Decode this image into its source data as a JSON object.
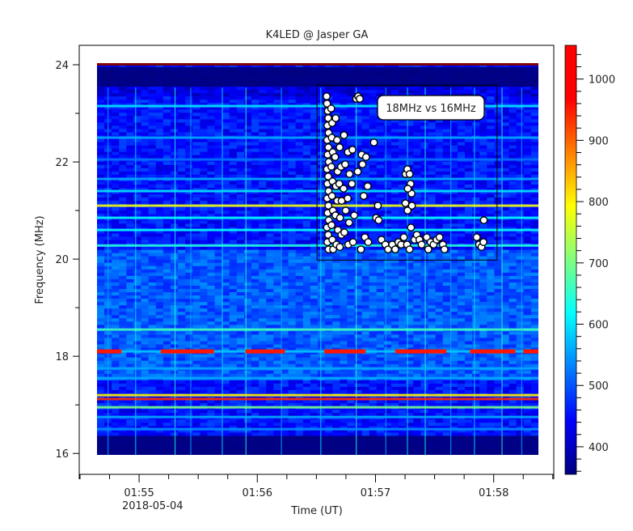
{
  "chart_data": {
    "type": "heatmap",
    "title": "K4LED @ Jasper GA",
    "xlabel": "Time (UT)",
    "ylabel": "Frequency (MHz)",
    "x_axis": {
      "unit": "seconds after 01:54:00 UT",
      "range_sec": [
        29.6,
        270.5
      ],
      "data_extent_sec": [
        38.6,
        262.7
      ],
      "major_ticks_sec": [
        60,
        120,
        180,
        240
      ],
      "major_tick_labels": [
        "01:55",
        "01:56",
        "01:57",
        "01:58"
      ],
      "minor_tick_step_sec": 15,
      "date_label": "2018-05-04"
    },
    "y_axis": {
      "range": [
        15.57,
        24.4
      ],
      "data_extent": [
        15.97,
        24.03
      ],
      "major_ticks": [
        16,
        18,
        20,
        22,
        24
      ],
      "major_tick_labels": [
        "16",
        "18",
        "20",
        "22",
        "24"
      ],
      "minor_ticks": [
        17,
        19,
        21,
        23
      ]
    },
    "colorbar": {
      "colormap": "jet",
      "range": [
        355,
        1055
      ],
      "ticks": [
        400,
        500,
        600,
        700,
        800,
        900,
        1000
      ],
      "tick_labels": [
        "400",
        "500",
        "600",
        "700",
        "800",
        "900",
        "1000"
      ],
      "minor_tick_step": 20,
      "colors": [
        "#00007f",
        "#0000ff",
        "#007fff",
        "#00ffff",
        "#7fff7f",
        "#ffff00",
        "#ff7f00",
        "#ff0000"
      ]
    },
    "heatmap_features": {
      "background_level": 450,
      "noise_floor_band": {
        "freq_range": [
          15.97,
          16.35
        ],
        "level": 355
      },
      "top_black_band": {
        "freq_range": [
          23.55,
          23.95
        ],
        "level": 355
      },
      "top_red_line": {
        "freq": 24.01,
        "level": 1055
      },
      "horizontal_bands": [
        {
          "freq": 23.15,
          "level": 600
        },
        {
          "freq": 22.5,
          "level": 560
        },
        {
          "freq": 22.05,
          "level": 520
        },
        {
          "freq": 21.65,
          "level": 560
        },
        {
          "freq": 21.4,
          "level": 600
        },
        {
          "freq": 21.1,
          "level": 780
        },
        {
          "freq": 20.85,
          "level": 620
        },
        {
          "freq": 20.6,
          "level": 620
        },
        {
          "freq": 20.28,
          "level": 640
        },
        {
          "freq": 18.55,
          "level": 660
        },
        {
          "freq": 18.1,
          "level": 580
        },
        {
          "freq": 17.75,
          "level": 560
        },
        {
          "freq": 17.55,
          "level": 560
        },
        {
          "freq": 17.2,
          "level": 800
        },
        {
          "freq": 17.12,
          "level": 940
        },
        {
          "freq": 16.95,
          "level": 700
        },
        {
          "freq": 16.75,
          "level": 560
        },
        {
          "freq": 16.5,
          "level": 540
        }
      ],
      "red_segments": [
        {
          "freq": 18.1,
          "t_range_sec": [
            38.6,
            51
          ]
        },
        {
          "freq": 18.1,
          "t_range_sec": [
            71,
            98
          ]
        },
        {
          "freq": 18.1,
          "t_range_sec": [
            114,
            134
          ]
        },
        {
          "freq": 18.1,
          "t_range_sec": [
            154,
            175
          ]
        },
        {
          "freq": 18.1,
          "t_range_sec": [
            190,
            216
          ]
        },
        {
          "freq": 18.1,
          "t_range_sec": [
            228,
            251
          ]
        },
        {
          "freq": 18.1,
          "t_range_sec": [
            255,
            262.7
          ]
        }
      ],
      "vertical_streaks_sec": [
        44,
        58,
        78,
        86,
        102,
        114,
        132,
        152,
        170,
        185,
        196,
        205,
        218,
        230,
        244,
        254
      ]
    },
    "annotation_box": {
      "label": "18MHz vs 16MHz",
      "t_range_sec": [
        150.3,
        241.7
      ],
      "freq_range": [
        19.98,
        23.58
      ]
    },
    "scatter_series": {
      "name": "18MHz vs 16MHz",
      "marker": "white circle, black outline",
      "points": [
        [
          155.2,
          23.35
        ],
        [
          155.4,
          23.2
        ],
        [
          155.8,
          23.05
        ],
        [
          156.0,
          22.9
        ],
        [
          155.6,
          22.75
        ],
        [
          156.2,
          22.6
        ],
        [
          155.5,
          22.45
        ],
        [
          156.1,
          22.3
        ],
        [
          155.7,
          22.15
        ],
        [
          156.3,
          22.0
        ],
        [
          155.4,
          21.85
        ],
        [
          156.0,
          21.7
        ],
        [
          155.6,
          21.55
        ],
        [
          156.2,
          21.4
        ],
        [
          155.5,
          21.25
        ],
        [
          156.1,
          21.1
        ],
        [
          155.7,
          20.95
        ],
        [
          156.3,
          20.8
        ],
        [
          155.4,
          20.65
        ],
        [
          156.0,
          20.5
        ],
        [
          155.6,
          20.35
        ],
        [
          156.2,
          20.2
        ],
        [
          157.5,
          23.1
        ],
        [
          158.0,
          22.8
        ],
        [
          157.8,
          22.5
        ],
        [
          158.3,
          22.2
        ],
        [
          157.6,
          21.9
        ],
        [
          158.2,
          21.6
        ],
        [
          157.9,
          21.3
        ],
        [
          158.4,
          21.0
        ],
        [
          157.7,
          20.7
        ],
        [
          158.1,
          20.4
        ],
        [
          158.5,
          20.2
        ],
        [
          159.8,
          22.9
        ],
        [
          160.5,
          22.45
        ],
        [
          159.5,
          22.1
        ],
        [
          160.8,
          21.8
        ],
        [
          159.9,
          21.5
        ],
        [
          160.6,
          21.2
        ],
        [
          159.7,
          20.9
        ],
        [
          160.9,
          20.6
        ],
        [
          160.2,
          20.3
        ],
        [
          161.8,
          22.3
        ],
        [
          162.5,
          21.9
        ],
        [
          161.6,
          21.55
        ],
        [
          162.8,
          21.2
        ],
        [
          162.0,
          20.85
        ],
        [
          162.7,
          20.5
        ],
        [
          161.9,
          20.25
        ],
        [
          164.0,
          22.55
        ],
        [
          164.6,
          21.95
        ],
        [
          163.8,
          21.45
        ],
        [
          164.9,
          21.0
        ],
        [
          164.2,
          20.55
        ],
        [
          166.0,
          22.2
        ],
        [
          166.8,
          21.75
        ],
        [
          165.9,
          21.25
        ],
        [
          166.6,
          20.75
        ],
        [
          166.2,
          20.3
        ],
        [
          168.3,
          22.25
        ],
        [
          168.0,
          21.55
        ],
        [
          169.2,
          20.9
        ],
        [
          168.6,
          20.35
        ],
        [
          170.2,
          23.3
        ],
        [
          171.2,
          23.35
        ],
        [
          172.0,
          23.3
        ],
        [
          173.0,
          22.15
        ],
        [
          171.0,
          21.8
        ],
        [
          173.4,
          21.95
        ],
        [
          174.0,
          21.3
        ],
        [
          175.2,
          22.1
        ],
        [
          176.0,
          21.5
        ],
        [
          172.6,
          20.2
        ],
        [
          174.6,
          20.45
        ],
        [
          176.3,
          20.35
        ],
        [
          179.2,
          22.4
        ],
        [
          181.2,
          21.1
        ],
        [
          180.3,
          20.85
        ],
        [
          181.6,
          20.8
        ],
        [
          183.0,
          20.4
        ],
        [
          185.0,
          20.3
        ],
        [
          186.4,
          20.2
        ],
        [
          188.5,
          20.3
        ],
        [
          190.0,
          20.2
        ],
        [
          191.6,
          20.35
        ],
        [
          193.0,
          20.3
        ],
        [
          194.4,
          20.45
        ],
        [
          196.0,
          20.3
        ],
        [
          197.3,
          20.2
        ],
        [
          195.3,
          21.75
        ],
        [
          196.2,
          21.85
        ],
        [
          197.3,
          21.75
        ],
        [
          197.8,
          21.55
        ],
        [
          198.3,
          21.35
        ],
        [
          196.4,
          21.45
        ],
        [
          195.2,
          21.15
        ],
        [
          196.3,
          21.0
        ],
        [
          198.5,
          21.1
        ],
        [
          198.0,
          20.65
        ],
        [
          199.8,
          20.4
        ],
        [
          201.0,
          20.5
        ],
        [
          202.3,
          20.4
        ],
        [
          203.4,
          20.3
        ],
        [
          206.0,
          20.45
        ],
        [
          208.0,
          20.35
        ],
        [
          209.5,
          20.3
        ],
        [
          206.8,
          20.2
        ],
        [
          211.0,
          20.4
        ],
        [
          212.5,
          20.45
        ],
        [
          214.2,
          20.3
        ],
        [
          215.0,
          20.2
        ],
        [
          231.4,
          20.45
        ],
        [
          232.6,
          20.3
        ],
        [
          233.8,
          20.25
        ],
        [
          234.8,
          20.35
        ],
        [
          235.0,
          20.8
        ]
      ]
    }
  }
}
